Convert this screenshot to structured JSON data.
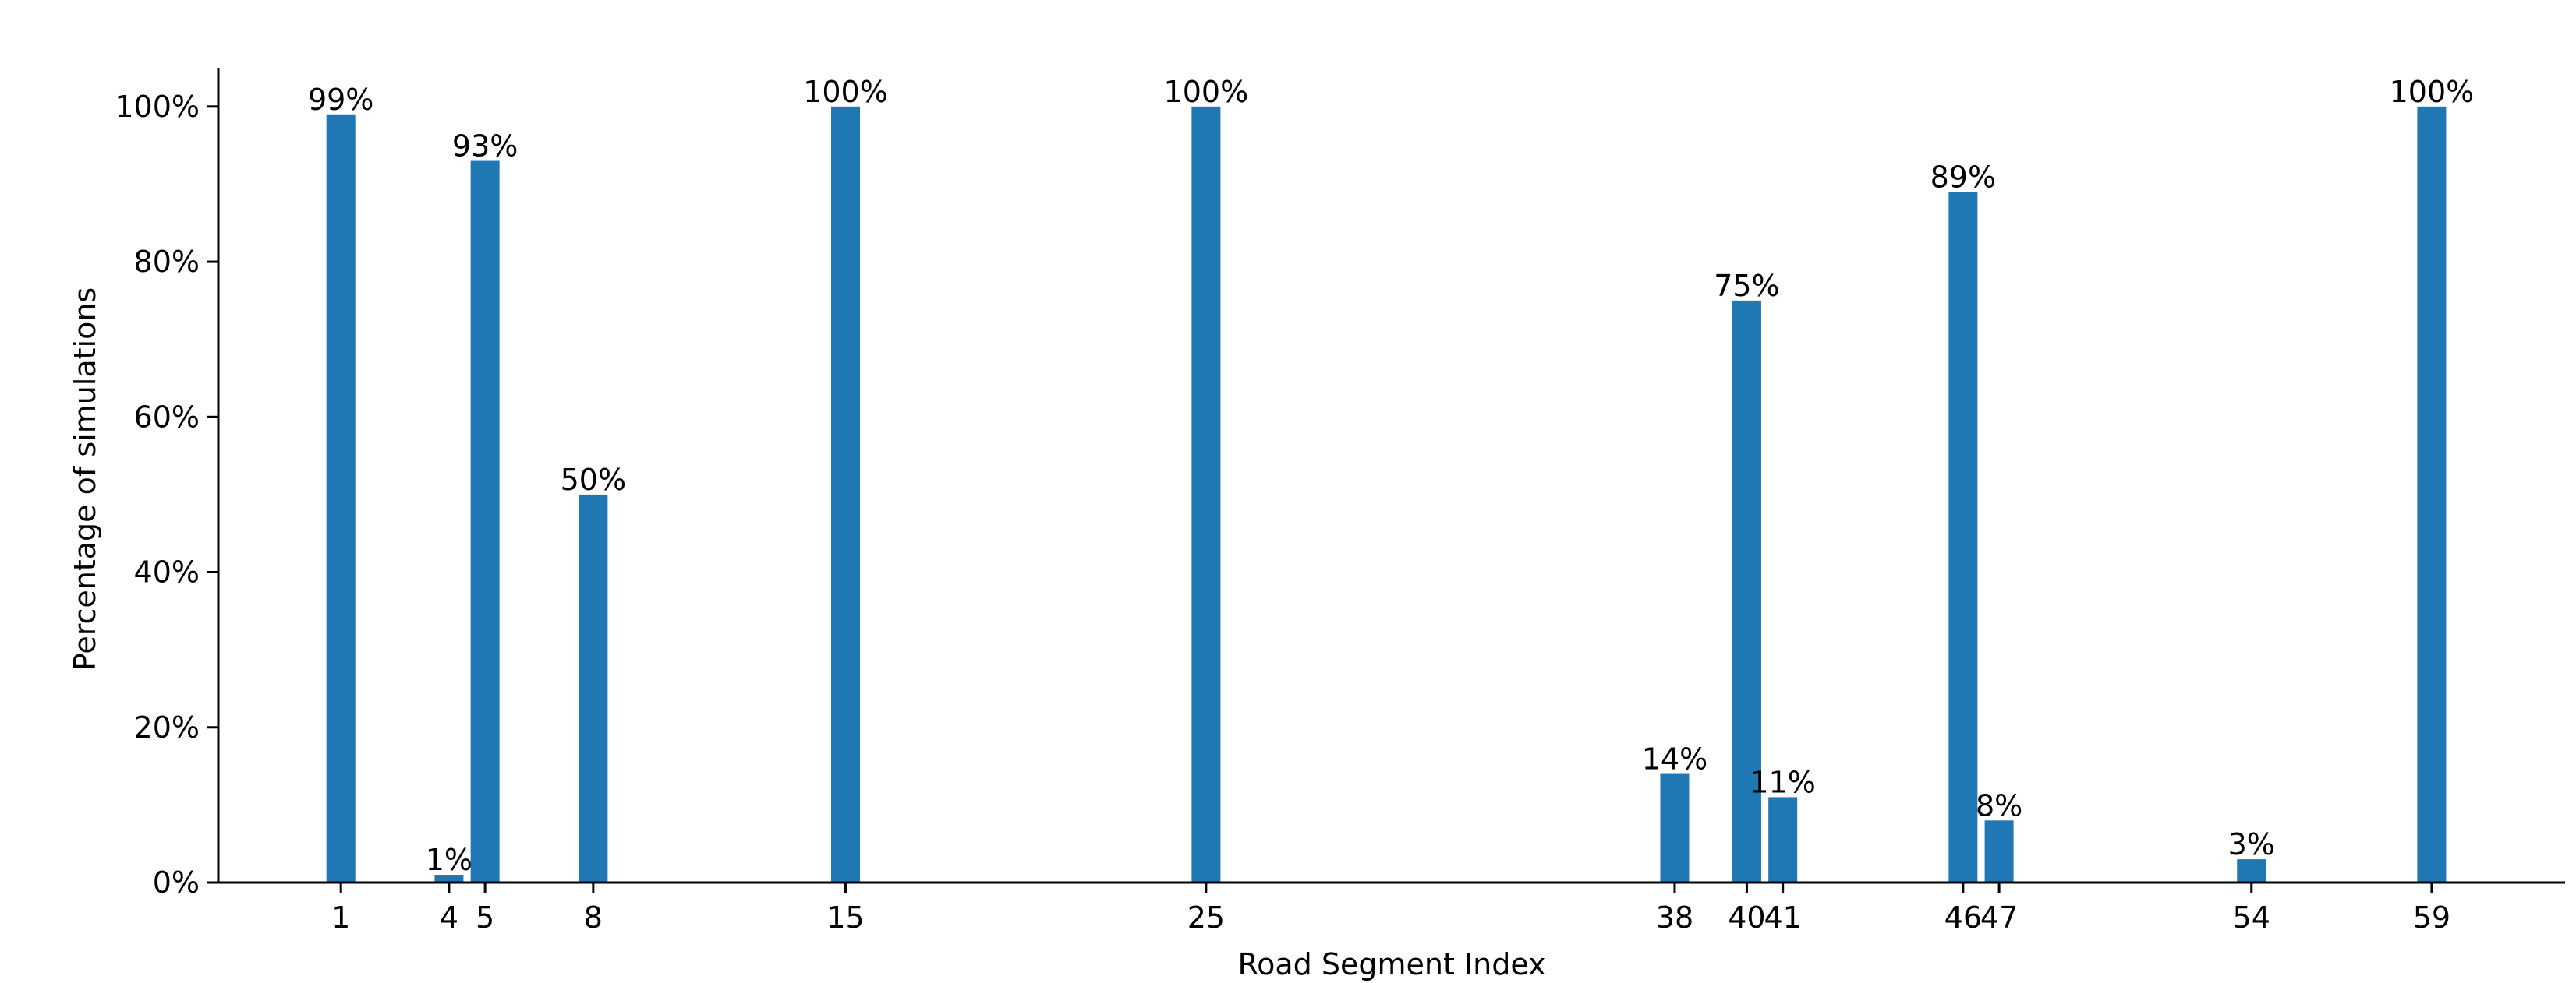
{
  "chart_data": {
    "type": "bar",
    "title": "",
    "xlabel": "Road Segment Index",
    "ylabel": "Percentage of simulations",
    "x_tick_labels": [
      "1",
      "4",
      "5",
      "8",
      "15",
      "25",
      "38",
      "40",
      "41",
      "46",
      "47",
      "54",
      "59"
    ],
    "y_tick_labels": [
      "0%",
      "20%",
      "40%",
      "60%",
      "80%",
      "100%"
    ],
    "y_ticks": [
      0,
      20,
      40,
      60,
      80,
      100
    ],
    "xlim": [
      -2.4,
      62.7
    ],
    "ylim": [
      0,
      105
    ],
    "grid": false,
    "bar_color": "#1f77b4",
    "bars": [
      {
        "x": 1,
        "value": 99,
        "label": "99%"
      },
      {
        "x": 4,
        "value": 1,
        "label": "1%"
      },
      {
        "x": 5,
        "value": 93,
        "label": "93%"
      },
      {
        "x": 8,
        "value": 50,
        "label": "50%"
      },
      {
        "x": 15,
        "value": 100,
        "label": "100%"
      },
      {
        "x": 25,
        "value": 100,
        "label": "100%"
      },
      {
        "x": 38,
        "value": 14,
        "label": "14%"
      },
      {
        "x": 40,
        "value": 75,
        "label": "75%"
      },
      {
        "x": 41,
        "value": 11,
        "label": "11%"
      },
      {
        "x": 46,
        "value": 89,
        "label": "89%"
      },
      {
        "x": 47,
        "value": 8,
        "label": "8%"
      },
      {
        "x": 54,
        "value": 3,
        "label": "3%"
      },
      {
        "x": 59,
        "value": 100,
        "label": "100%"
      }
    ]
  }
}
